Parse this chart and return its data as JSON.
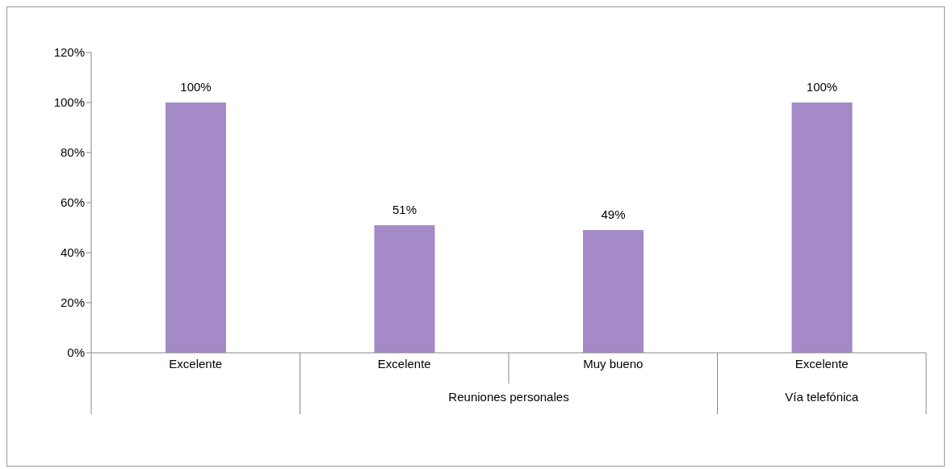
{
  "chart_data": {
    "type": "bar",
    "categories": [
      "Excelente",
      "Excelente",
      "Muy bueno",
      "Excelente"
    ],
    "values": [
      100,
      51,
      49,
      100
    ],
    "color": "#a48ac6",
    "value_labels": [
      "100%",
      "51%",
      "49%",
      "100%"
    ],
    "ylim": [
      0,
      120
    ],
    "yticks": [
      {
        "value": 0,
        "label": "0%"
      },
      {
        "value": 20,
        "label": "20%"
      },
      {
        "value": 40,
        "label": "40%"
      },
      {
        "value": 60,
        "label": "60%"
      },
      {
        "value": 80,
        "label": "80%"
      },
      {
        "value": 100,
        "label": "100%"
      },
      {
        "value": 120,
        "label": "120%"
      }
    ],
    "grid": false,
    "legend": false,
    "annotations": [
      "Reuniones personales",
      "Vía telefónica"
    ]
  }
}
